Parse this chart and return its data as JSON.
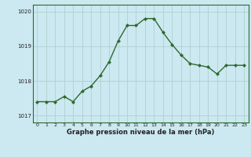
{
  "hours": [
    0,
    1,
    2,
    3,
    4,
    5,
    6,
    7,
    8,
    9,
    10,
    11,
    12,
    13,
    14,
    15,
    16,
    17,
    18,
    19,
    20,
    21,
    22,
    23
  ],
  "pressure": [
    1017.4,
    1017.4,
    1017.4,
    1017.55,
    1017.4,
    1017.7,
    1017.85,
    1018.15,
    1018.55,
    1019.15,
    1019.6,
    1019.6,
    1019.8,
    1019.8,
    1019.4,
    1019.05,
    1018.75,
    1018.5,
    1018.45,
    1018.4,
    1018.2,
    1018.45,
    1018.45,
    1018.45
  ],
  "ylim": [
    1016.8,
    1020.2
  ],
  "yticks": [
    1017,
    1018,
    1019,
    1020
  ],
  "xlabel": "Graphe pression niveau de la mer (hPa)",
  "line_color": "#2d6a2d",
  "marker_color": "#2d6a2d",
  "bg_color": "#cce8f0",
  "grid_color": "#aacccc",
  "marker": "D",
  "markersize": 2.0,
  "linewidth": 1.0
}
